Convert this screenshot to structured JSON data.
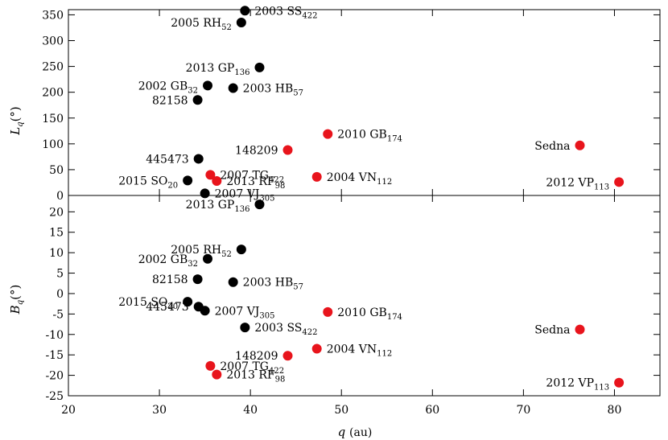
{
  "chart_data": {
    "type": "scatter",
    "xlabel": "q",
    "xlabel_unit": "(au)",
    "xlim": [
      20,
      85
    ],
    "x_ticks": [
      20,
      30,
      40,
      50,
      60,
      70,
      80
    ],
    "x_tick_labels": [
      "20",
      "30",
      "40",
      "50",
      "60",
      "70",
      "80"
    ],
    "colors": {
      "black_series": "#000000",
      "red_series": "#e8141c"
    },
    "panels": [
      {
        "id": "top",
        "ylabel": "L",
        "ylabel_sub": "q",
        "ylabel_unit": "(°)",
        "ylim": [
          0,
          360
        ],
        "y_ticks": [
          0,
          50,
          100,
          150,
          200,
          250,
          300,
          350
        ],
        "y_tick_labels": [
          "0",
          "50",
          "100",
          "150",
          "200",
          "250",
          "300",
          "350"
        ],
        "points": [
          {
            "name": "2003 SS",
            "sub": "422",
            "x": 39.4,
            "y": 358,
            "color": "black",
            "lpos": "right"
          },
          {
            "name": "2005 RH",
            "sub": "52",
            "x": 39.0,
            "y": 335,
            "color": "black",
            "lpos": "left"
          },
          {
            "name": "2013 GP",
            "sub": "136",
            "x": 41.0,
            "y": 248,
            "color": "black",
            "lpos": "left"
          },
          {
            "name": "2002 GB",
            "sub": "32",
            "x": 35.3,
            "y": 213,
            "color": "black",
            "lpos": "left"
          },
          {
            "name": "2003 HB",
            "sub": "57",
            "x": 38.1,
            "y": 208,
            "color": "black",
            "lpos": "right"
          },
          {
            "name": "82158",
            "sub": "",
            "x": 34.2,
            "y": 185,
            "color": "black",
            "lpos": "left"
          },
          {
            "name": "445473",
            "sub": "",
            "x": 34.3,
            "y": 71,
            "color": "black",
            "lpos": "left"
          },
          {
            "name": "2015 SO",
            "sub": "20",
            "x": 33.1,
            "y": 29,
            "color": "black",
            "lpos": "left"
          },
          {
            "name": "2007 VJ",
            "sub": "305",
            "x": 35.0,
            "y": 4,
            "color": "black",
            "lpos": "right"
          },
          {
            "name": "2010 GB",
            "sub": "174",
            "x": 48.5,
            "y": 119,
            "color": "red",
            "lpos": "right"
          },
          {
            "name": "148209",
            "sub": "",
            "x": 44.1,
            "y": 88,
            "color": "red",
            "lpos": "left"
          },
          {
            "name": "2007 TG",
            "sub": "422",
            "x": 35.6,
            "y": 40,
            "color": "red",
            "lpos": "right"
          },
          {
            "name": "2013 RF",
            "sub": "98",
            "x": 36.3,
            "y": 28,
            "color": "red",
            "lpos": "right"
          },
          {
            "name": "2004 VN",
            "sub": "112",
            "x": 47.3,
            "y": 36,
            "color": "red",
            "lpos": "right"
          },
          {
            "name": "Sedna",
            "sub": "",
            "x": 76.2,
            "y": 97,
            "color": "red",
            "lpos": "left"
          },
          {
            "name": "2012 VP",
            "sub": "113",
            "x": 80.5,
            "y": 26,
            "color": "red",
            "lpos": "left"
          }
        ]
      },
      {
        "id": "bottom",
        "ylabel": "B",
        "ylabel_sub": "q",
        "ylabel_unit": "(°)",
        "ylim": [
          -25,
          24
        ],
        "y_ticks": [
          20,
          15,
          10,
          5,
          0,
          -5,
          -10,
          -15,
          -20,
          -25
        ],
        "y_tick_labels": [
          "20",
          "15",
          "10",
          "5",
          "0",
          "-5",
          "-10",
          "-15",
          "-20",
          "-25"
        ],
        "points": [
          {
            "name": "2013 GP",
            "sub": "136",
            "x": 41.0,
            "y": 21.8,
            "color": "black",
            "lpos": "left"
          },
          {
            "name": "2005 RH",
            "sub": "52",
            "x": 39.0,
            "y": 10.8,
            "color": "black",
            "lpos": "left"
          },
          {
            "name": "2002 GB",
            "sub": "32",
            "x": 35.3,
            "y": 8.5,
            "color": "black",
            "lpos": "left"
          },
          {
            "name": "82158",
            "sub": "",
            "x": 34.2,
            "y": 3.5,
            "color": "black",
            "lpos": "left"
          },
          {
            "name": "2003 HB",
            "sub": "57",
            "x": 38.1,
            "y": 2.8,
            "color": "black",
            "lpos": "right"
          },
          {
            "name": "2015 SO",
            "sub": "20",
            "x": 33.1,
            "y": -2.0,
            "color": "black",
            "lpos": "left"
          },
          {
            "name": "445473",
            "sub": "",
            "x": 34.3,
            "y": -3.2,
            "color": "black",
            "lpos": "left"
          },
          {
            "name": "2007 VJ",
            "sub": "305",
            "x": 35.0,
            "y": -4.2,
            "color": "black",
            "lpos": "right"
          },
          {
            "name": "2003 SS",
            "sub": "422",
            "x": 39.4,
            "y": -8.3,
            "color": "black",
            "lpos": "right"
          },
          {
            "name": "2010 GB",
            "sub": "174",
            "x": 48.5,
            "y": -4.5,
            "color": "red",
            "lpos": "right"
          },
          {
            "name": "Sedna",
            "sub": "",
            "x": 76.2,
            "y": -8.8,
            "color": "red",
            "lpos": "left"
          },
          {
            "name": "2004 VN",
            "sub": "112",
            "x": 47.3,
            "y": -13.5,
            "color": "red",
            "lpos": "right"
          },
          {
            "name": "148209",
            "sub": "",
            "x": 44.1,
            "y": -15.2,
            "color": "red",
            "lpos": "left"
          },
          {
            "name": "2007 TG",
            "sub": "422",
            "x": 35.6,
            "y": -17.7,
            "color": "red",
            "lpos": "right"
          },
          {
            "name": "2013 RF",
            "sub": "98",
            "x": 36.3,
            "y": -19.8,
            "color": "red",
            "lpos": "right"
          },
          {
            "name": "2012 VP",
            "sub": "113",
            "x": 80.5,
            "y": -21.8,
            "color": "red",
            "lpos": "left"
          }
        ]
      }
    ]
  }
}
